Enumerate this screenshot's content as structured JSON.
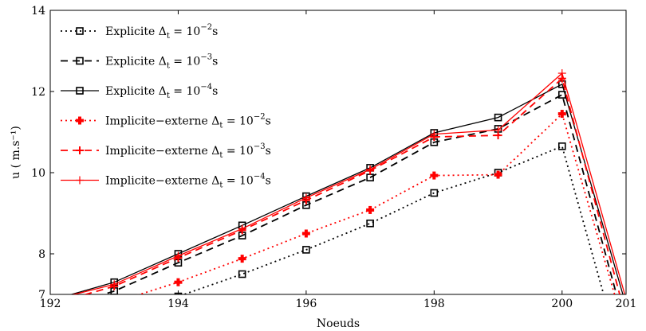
{
  "chart_data": {
    "type": "line",
    "xlabel": "Noeuds",
    "ylabel": "u ( m.s⁻¹)",
    "xlim": [
      192,
      201
    ],
    "ylim": [
      7,
      14
    ],
    "xticks": [
      192,
      194,
      196,
      198,
      200,
      201
    ],
    "yticks": [
      7,
      8,
      10,
      12,
      14
    ],
    "xtick_labels": [
      "192",
      "194",
      "196",
      "198",
      "200",
      "201"
    ],
    "ytick_labels": [
      "7",
      "8",
      "10",
      "12",
      "14"
    ],
    "grid": false,
    "legend_position": "top-left",
    "series": [
      {
        "name": "Explicite Δt = 10⁻²s",
        "legend_main": "Explicite Δ",
        "legend_sub": "t",
        "legend_mid": " = 10",
        "legend_exp": "−2",
        "legend_tail": "s",
        "color": "#000000",
        "style": "dotted",
        "marker": "square",
        "x": [
          192,
          193,
          194,
          195,
          196,
          197,
          198,
          199,
          200,
          200.65
        ],
        "y": [
          6.2,
          6.7,
          6.95,
          7.5,
          8.1,
          8.75,
          9.5,
          10.0,
          10.65,
          7.0
        ]
      },
      {
        "name": "Explicite Δt = 10⁻³s",
        "legend_main": "Explicite Δ",
        "legend_sub": "t",
        "legend_mid": " = 10",
        "legend_exp": "−3",
        "legend_tail": "s",
        "color": "#000000",
        "style": "dashed",
        "marker": "square",
        "x": [
          192,
          193,
          194,
          195,
          196,
          197,
          198,
          199,
          200,
          200.85
        ],
        "y": [
          6.6,
          7.08,
          7.78,
          8.45,
          9.2,
          9.88,
          10.75,
          11.08,
          11.92,
          7.0
        ]
      },
      {
        "name": "Explicite Δt = 10⁻⁴s",
        "legend_main": "Explicite Δ",
        "legend_sub": "t",
        "legend_mid": " = 10",
        "legend_exp": "−4",
        "legend_tail": "s",
        "color": "#000000",
        "style": "solid",
        "marker": "square",
        "x": [
          192,
          193,
          194,
          195,
          196,
          197,
          198,
          199,
          200,
          200.95
        ],
        "y": [
          6.85,
          7.3,
          8.0,
          8.7,
          9.42,
          10.12,
          10.98,
          11.36,
          12.18,
          7.0
        ]
      },
      {
        "name": "Implicite−externe Δt = 10⁻²s",
        "legend_main": "Implicite−externe Δ",
        "legend_sub": "t",
        "legend_mid": " = 10",
        "legend_exp": "−2",
        "legend_tail": "s",
        "color": "#ff0000",
        "style": "dotted",
        "marker": "plus-bold",
        "x": [
          192,
          193,
          194,
          195,
          196,
          197,
          198,
          199,
          200,
          200.82
        ],
        "y": [
          6.3,
          6.8,
          7.3,
          7.88,
          8.5,
          9.08,
          9.93,
          9.95,
          11.45,
          7.0
        ]
      },
      {
        "name": "Implicite−externe Δt = 10⁻³s",
        "legend_main": "Implicite−externe Δ",
        "legend_sub": "t",
        "legend_mid": " = 10",
        "legend_exp": "−3",
        "legend_tail": "s",
        "color": "#ff0000",
        "style": "dashed",
        "marker": "plus",
        "x": [
          192,
          193,
          194,
          195,
          196,
          197,
          198,
          199,
          200,
          200.9
        ],
        "y": [
          6.75,
          7.2,
          7.9,
          8.58,
          9.32,
          10.05,
          10.88,
          10.92,
          12.32,
          7.0
        ]
      },
      {
        "name": "Implicite−externe Δt = 10⁻⁴s",
        "legend_main": "Implicite−externe Δ",
        "legend_sub": "t",
        "legend_mid": " = 10",
        "legend_exp": "−4",
        "legend_tail": "s",
        "color": "#ff0000",
        "style": "solid",
        "marker": "plus-thin",
        "x": [
          192,
          193,
          194,
          195,
          196,
          197,
          198,
          199,
          200,
          200.98
        ],
        "y": [
          6.85,
          7.25,
          7.95,
          8.62,
          9.38,
          10.08,
          10.95,
          11.05,
          12.45,
          7.0
        ]
      }
    ]
  }
}
